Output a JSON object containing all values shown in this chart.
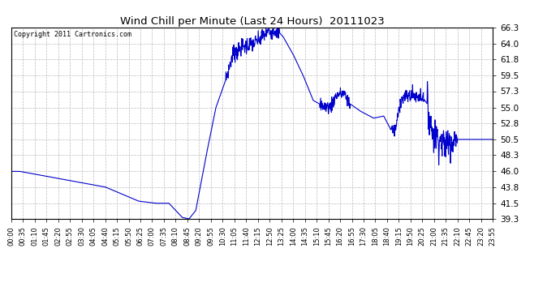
{
  "title": "Wind Chill per Minute (Last 24 Hours)  20111023",
  "copyright": "Copyright 2011 Cartronics.com",
  "line_color": "#0000cc",
  "background_color": "#ffffff",
  "grid_color": "#bbbbbb",
  "ylim": [
    39.3,
    66.3
  ],
  "yticks": [
    39.3,
    41.5,
    43.8,
    46.0,
    48.3,
    50.5,
    52.8,
    55.0,
    57.3,
    59.5,
    61.8,
    64.0,
    66.3
  ],
  "figsize": [
    6.9,
    3.75
  ],
  "dpi": 100,
  "xtick_labels": [
    "00:00",
    "00:35",
    "01:10",
    "01:45",
    "02:20",
    "02:55",
    "03:30",
    "04:05",
    "04:40",
    "05:15",
    "05:50",
    "06:25",
    "07:00",
    "07:35",
    "08:10",
    "08:45",
    "09:20",
    "09:55",
    "10:30",
    "11:05",
    "11:40",
    "12:15",
    "12:50",
    "13:25",
    "14:00",
    "14:35",
    "15:10",
    "15:45",
    "16:20",
    "16:55",
    "17:30",
    "18:05",
    "18:40",
    "19:15",
    "19:50",
    "20:25",
    "21:00",
    "21:35",
    "22:10",
    "22:45",
    "23:20",
    "23:55"
  ],
  "segments": [
    {
      "t0": 0,
      "t1": 25,
      "v0": 46.0,
      "v1": 46.0
    },
    {
      "t0": 25,
      "t1": 280,
      "v0": 46.0,
      "v1": 43.8
    },
    {
      "t0": 280,
      "t1": 380,
      "v0": 43.8,
      "v1": 41.8
    },
    {
      "t0": 380,
      "t1": 430,
      "v0": 41.8,
      "v1": 41.5
    },
    {
      "t0": 430,
      "t1": 470,
      "v0": 41.5,
      "v1": 41.5
    },
    {
      "t0": 470,
      "t1": 510,
      "v0": 41.5,
      "v1": 39.5
    },
    {
      "t0": 510,
      "t1": 530,
      "v0": 39.5,
      "v1": 39.3
    },
    {
      "t0": 530,
      "t1": 550,
      "v0": 39.3,
      "v1": 40.5
    },
    {
      "t0": 550,
      "t1": 580,
      "v0": 40.5,
      "v1": 48.0
    },
    {
      "t0": 580,
      "t1": 610,
      "v0": 48.0,
      "v1": 55.0
    },
    {
      "t0": 610,
      "t1": 640,
      "v0": 55.0,
      "v1": 59.0
    },
    {
      "t0": 640,
      "t1": 660,
      "v0": 59.0,
      "v1": 62.5
    },
    {
      "t0": 660,
      "t1": 690,
      "v0": 62.5,
      "v1": 63.5
    },
    {
      "t0": 690,
      "t1": 730,
      "v0": 63.5,
      "v1": 64.2
    },
    {
      "t0": 730,
      "t1": 760,
      "v0": 64.2,
      "v1": 65.5
    },
    {
      "t0": 760,
      "t1": 790,
      "v0": 65.5,
      "v1": 66.0
    },
    {
      "t0": 790,
      "t1": 810,
      "v0": 66.0,
      "v1": 65.0
    },
    {
      "t0": 810,
      "t1": 840,
      "v0": 65.0,
      "v1": 62.5
    },
    {
      "t0": 840,
      "t1": 870,
      "v0": 62.5,
      "v1": 59.5
    },
    {
      "t0": 870,
      "t1": 900,
      "v0": 59.5,
      "v1": 56.0
    },
    {
      "t0": 900,
      "t1": 930,
      "v0": 56.0,
      "v1": 55.2
    },
    {
      "t0": 930,
      "t1": 950,
      "v0": 55.2,
      "v1": 55.0
    },
    {
      "t0": 950,
      "t1": 970,
      "v0": 55.0,
      "v1": 56.8
    },
    {
      "t0": 970,
      "t1": 990,
      "v0": 56.8,
      "v1": 57.0
    },
    {
      "t0": 990,
      "t1": 1010,
      "v0": 57.0,
      "v1": 55.5
    },
    {
      "t0": 1010,
      "t1": 1040,
      "v0": 55.5,
      "v1": 54.5
    },
    {
      "t0": 1040,
      "t1": 1080,
      "v0": 54.5,
      "v1": 53.5
    },
    {
      "t0": 1080,
      "t1": 1110,
      "v0": 53.5,
      "v1": 53.8
    },
    {
      "t0": 1110,
      "t1": 1130,
      "v0": 53.8,
      "v1": 52.0
    },
    {
      "t0": 1130,
      "t1": 1145,
      "v0": 52.0,
      "v1": 51.8
    },
    {
      "t0": 1145,
      "t1": 1160,
      "v0": 51.8,
      "v1": 56.0
    },
    {
      "t0": 1160,
      "t1": 1175,
      "v0": 56.0,
      "v1": 56.5
    },
    {
      "t0": 1175,
      "t1": 1195,
      "v0": 56.5,
      "v1": 56.8
    },
    {
      "t0": 1195,
      "t1": 1210,
      "v0": 56.8,
      "v1": 56.5
    },
    {
      "t0": 1210,
      "t1": 1220,
      "v0": 56.5,
      "v1": 56.8
    },
    {
      "t0": 1220,
      "t1": 1240,
      "v0": 56.8,
      "v1": 55.5
    },
    {
      "t0": 1240,
      "t1": 1255,
      "v0": 55.5,
      "v1": 51.5
    },
    {
      "t0": 1255,
      "t1": 1270,
      "v0": 51.5,
      "v1": 50.8
    },
    {
      "t0": 1270,
      "t1": 1290,
      "v0": 50.8,
      "v1": 49.8
    },
    {
      "t0": 1290,
      "t1": 1310,
      "v0": 49.8,
      "v1": 50.5
    },
    {
      "t0": 1310,
      "t1": 1440,
      "v0": 50.5,
      "v1": 50.5
    }
  ],
  "noise_regions": [
    {
      "t0": 640,
      "t1": 800,
      "amp": 0.6
    },
    {
      "t0": 920,
      "t1": 1010,
      "amp": 0.5
    },
    {
      "t0": 1130,
      "t1": 1230,
      "amp": 0.5
    },
    {
      "t0": 1240,
      "t1": 1330,
      "amp": 1.2
    }
  ]
}
